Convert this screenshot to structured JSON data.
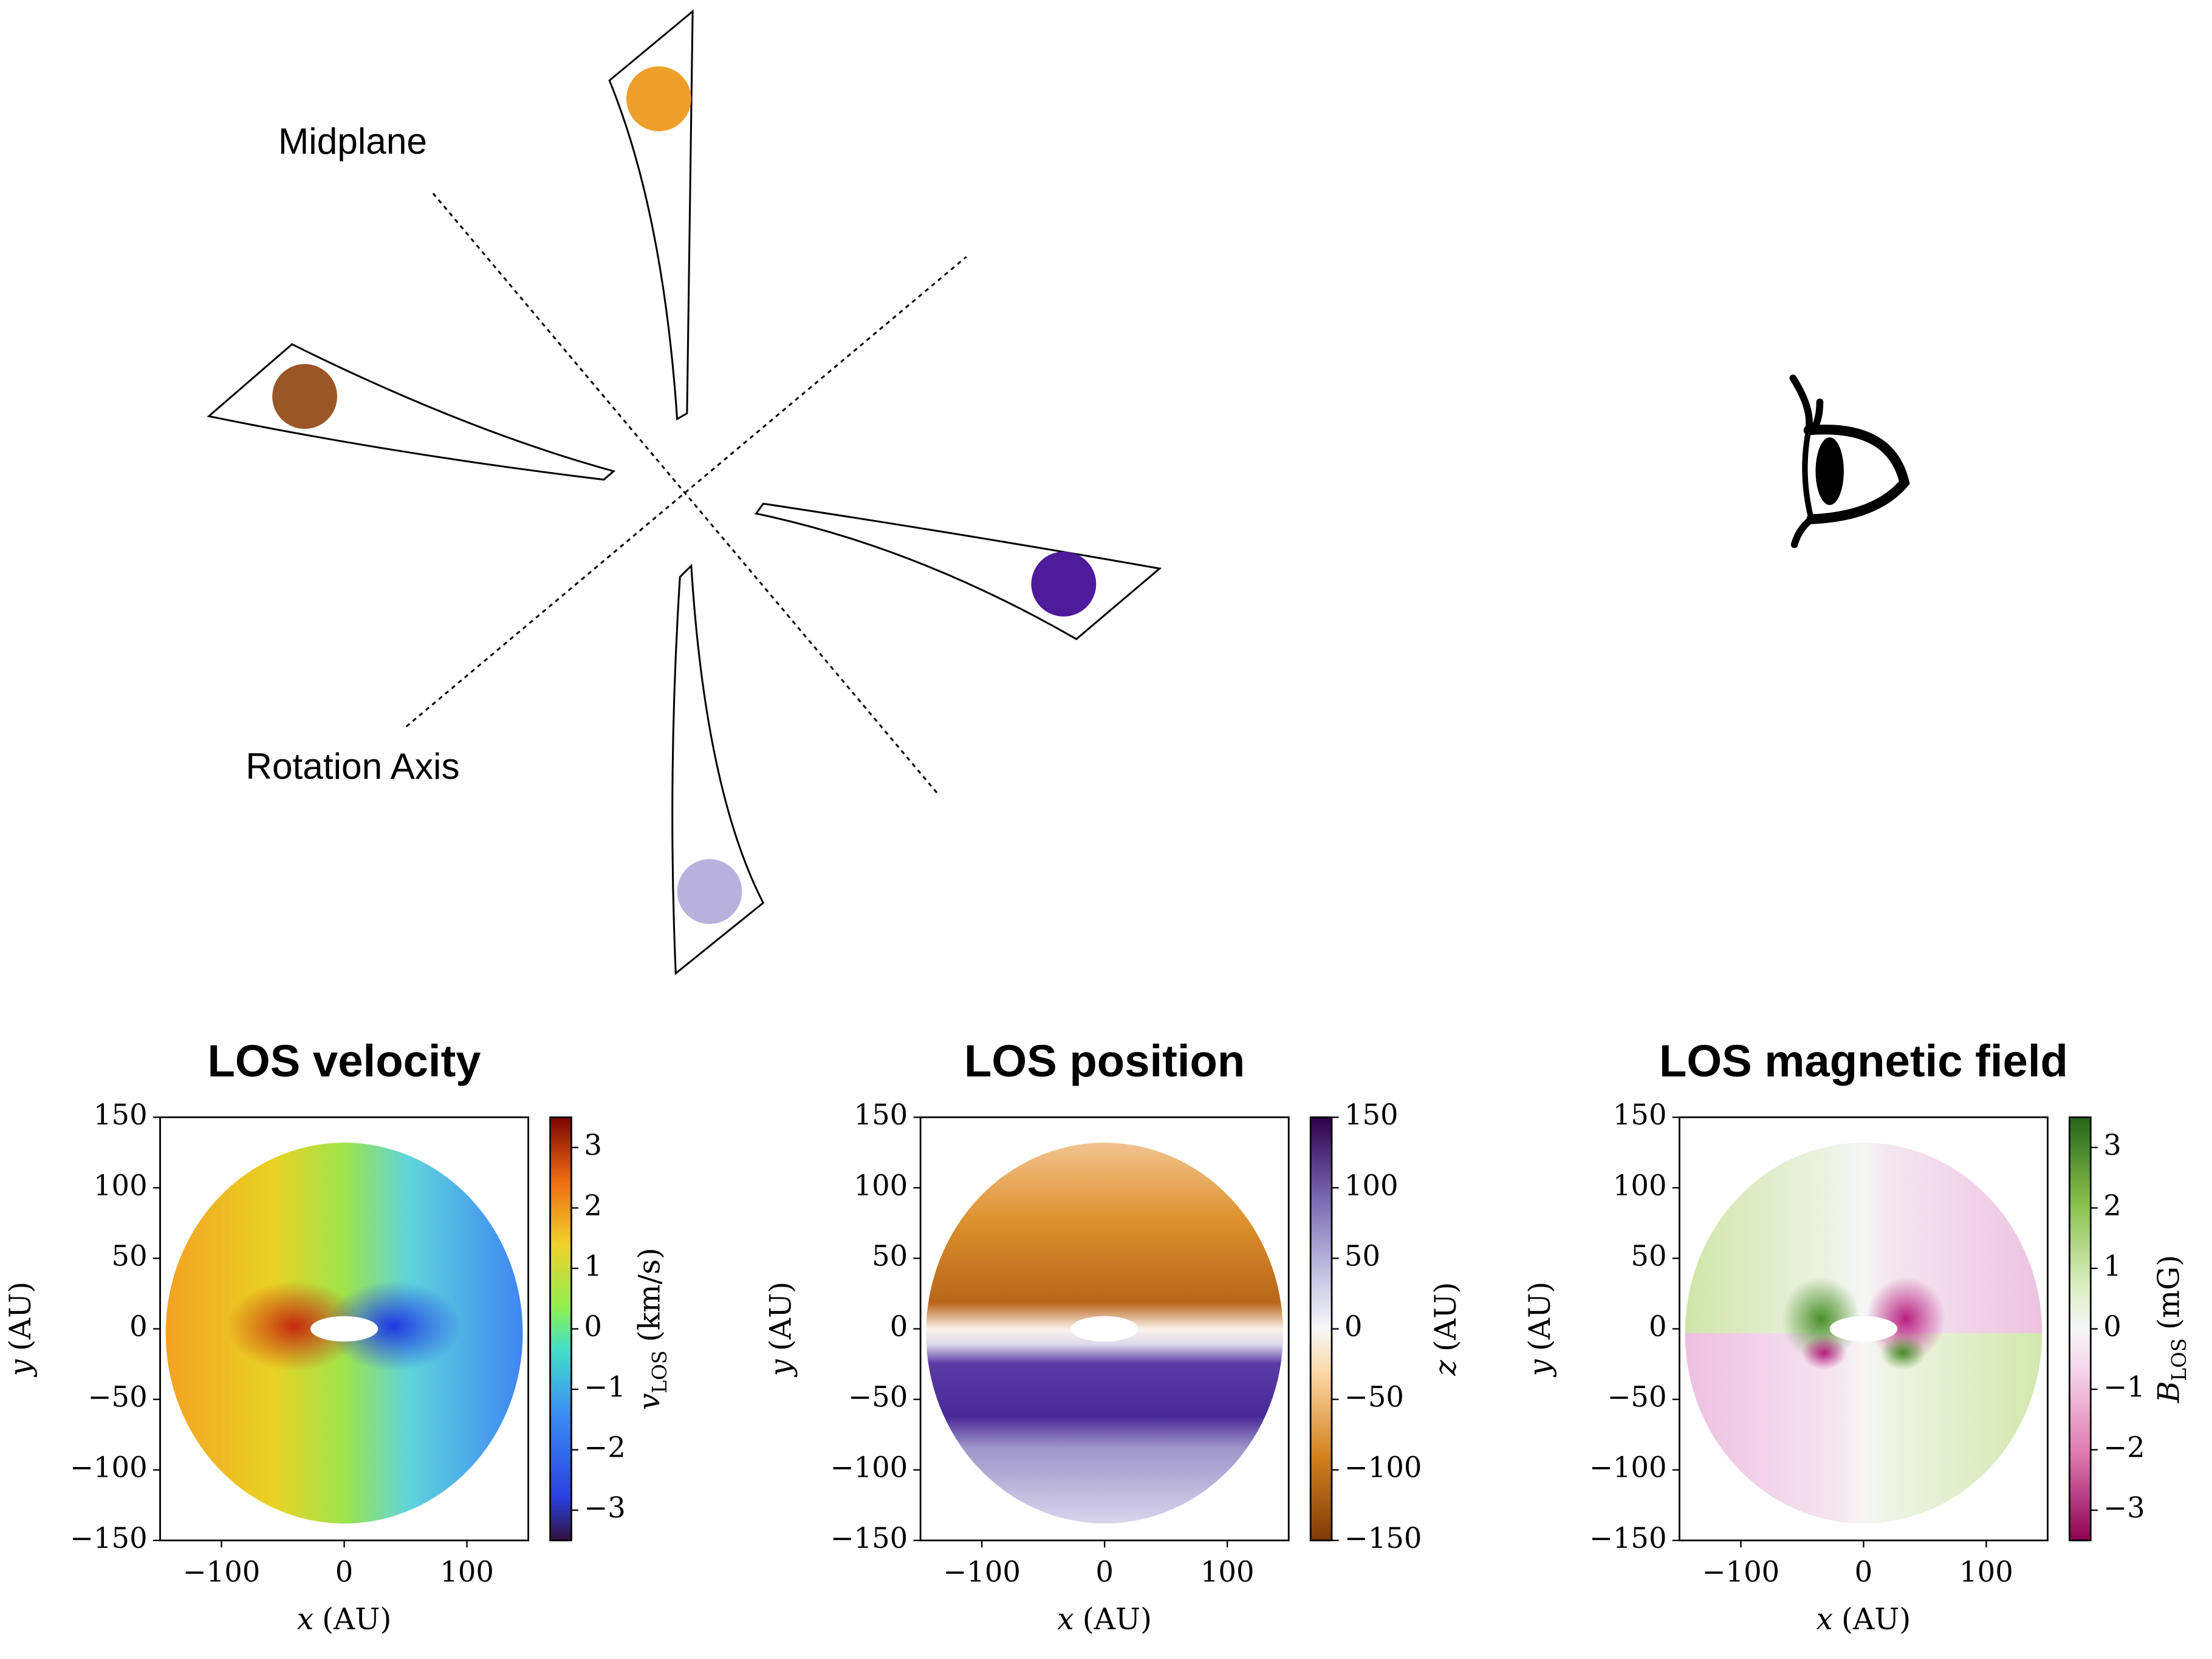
{
  "diagram": {
    "labels": [
      "Midplane",
      "Rotation Axis"
    ]
  },
  "panels": [
    {
      "title": "LOS velocity",
      "x_label": {
        "symbol": "x",
        "unit": "(AU)"
      },
      "y_label": {
        "symbol": "y",
        "unit": "(AU)"
      },
      "xlim": [
        -150,
        150
      ],
      "ylim": [
        -150,
        150
      ],
      "xticks": [
        {
          "value": -100,
          "label": "−100"
        },
        0,
        100
      ],
      "yticks": [
        {
          "value": -150,
          "label": "−150"
        },
        {
          "value": -100,
          "label": "−100"
        },
        {
          "value": -50,
          "label": "−50"
        },
        0,
        50,
        100,
        150
      ],
      "colorbar": {
        "label": {
          "symbol": "v",
          "sub": "LOS",
          "unit": "(km/s)"
        },
        "lim": [
          -3.5,
          3.5
        ],
        "ticks": [
          {
            "value": -3,
            "label": "−3"
          },
          {
            "value": -2,
            "label": "−2"
          },
          {
            "value": -1,
            "label": "−1"
          },
          0,
          1,
          2,
          3
        ]
      }
    },
    {
      "title": "LOS position",
      "x_label": {
        "symbol": "x",
        "unit": "(AU)"
      },
      "y_label": {
        "symbol": "y",
        "unit": "(AU)"
      },
      "xlim": [
        -150,
        150
      ],
      "ylim": [
        -150,
        150
      ],
      "xticks": [
        {
          "value": -100,
          "label": "−100"
        },
        0,
        100
      ],
      "yticks": [
        {
          "value": -150,
          "label": "−150"
        },
        {
          "value": -100,
          "label": "−100"
        },
        {
          "value": -50,
          "label": "−50"
        },
        0,
        50,
        100,
        150
      ],
      "colorbar": {
        "label": {
          "symbol": "z",
          "sub": "",
          "unit": "(AU)"
        },
        "lim": [
          -150,
          150
        ],
        "ticks": [
          {
            "value": -150,
            "label": "−150"
          },
          {
            "value": -100,
            "label": "−100"
          },
          {
            "value": -50,
            "label": "−50"
          },
          0,
          50,
          100,
          150
        ]
      }
    },
    {
      "title": "LOS magnetic field",
      "x_label": {
        "symbol": "x",
        "unit": "(AU)"
      },
      "y_label": {
        "symbol": "y",
        "unit": "(AU)"
      },
      "xlim": [
        -150,
        150
      ],
      "ylim": [
        -150,
        150
      ],
      "xticks": [
        {
          "value": -100,
          "label": "−100"
        },
        0,
        100
      ],
      "yticks": [
        {
          "value": -150,
          "label": "−150"
        },
        {
          "value": -100,
          "label": "−100"
        },
        {
          "value": -50,
          "label": "−50"
        },
        0,
        50,
        100,
        150
      ],
      "colorbar": {
        "label": {
          "symbol": "B",
          "sub": "LOS",
          "unit": "(mG)"
        },
        "lim": [
          -3.5,
          3.5
        ],
        "ticks": [
          {
            "value": -3,
            "label": "−3"
          },
          {
            "value": -2,
            "label": "−2"
          },
          {
            "value": -1,
            "label": "−1"
          },
          0,
          1,
          2,
          3
        ]
      }
    }
  ]
}
